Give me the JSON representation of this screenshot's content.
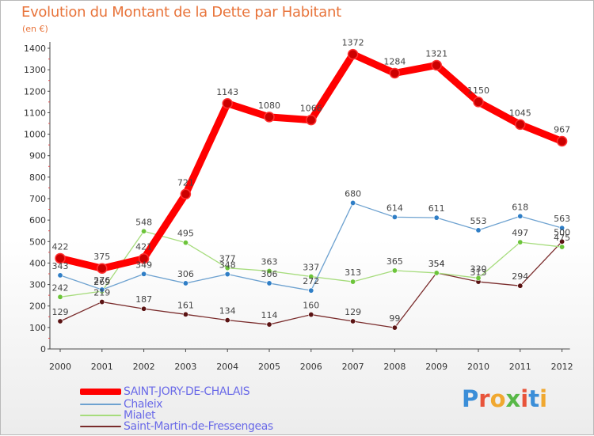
{
  "title": "Evolution du Montant de la Dette par Habitant",
  "unit_label": "(en €)",
  "brand": {
    "text": "Proxiti",
    "colors": [
      "#3b8ed8",
      "#e8543b",
      "#f0a830",
      "#58b847",
      "#e8543b",
      "#3b8ed8",
      "#f0a830"
    ]
  },
  "chart_data": {
    "type": "line",
    "title": "Evolution du Montant de la Dette par Habitant",
    "xlabel": "",
    "ylabel": "(en €)",
    "x": [
      "2000",
      "2001",
      "2002",
      "2003",
      "2004",
      "2005",
      "2006",
      "2007",
      "2008",
      "2009",
      "2010",
      "2011",
      "2012"
    ],
    "ylim": [
      0,
      1400
    ],
    "yticks": [
      0,
      100,
      200,
      300,
      400,
      500,
      600,
      700,
      800,
      900,
      1000,
      1100,
      1200,
      1300,
      1400
    ],
    "grid": false,
    "legend_position": "bottom-left",
    "series": [
      {
        "name": "SAINT-JORY-DE-CHALAIS",
        "color": "#ff0000",
        "marker_color": "#cc0000",
        "bold": true,
        "values": [
          422,
          375,
          421,
          721,
          1143,
          1080,
          1066,
          1372,
          1284,
          1321,
          1150,
          1045,
          967
        ],
        "labels": [
          "422",
          "375",
          "421",
          "721",
          "1143",
          "1080",
          "1066",
          "1372",
          "1284",
          "1321",
          "1150",
          "1045",
          "967"
        ]
      },
      {
        "name": "Chaleix",
        "color": "#6ea2d0",
        "marker_color": "#2f7ec6",
        "bold": false,
        "values": [
          343,
          276,
          349,
          306,
          348,
          306,
          272,
          680,
          614,
          611,
          553,
          618,
          563
        ],
        "labels": [
          "343",
          "276",
          "349",
          "306",
          "348",
          "306",
          "272",
          "680",
          "614",
          "611",
          "553",
          "618",
          "563"
        ]
      },
      {
        "name": "Mialet",
        "color": "#a6dc7c",
        "marker_color": "#6cc43a",
        "bold": false,
        "values": [
          242,
          269,
          548,
          495,
          377,
          363,
          337,
          313,
          365,
          354,
          330,
          497,
          475
        ],
        "labels": [
          "242",
          "269",
          "548",
          "495",
          "377",
          "363",
          "337",
          "313",
          "365",
          "354",
          "330",
          "497",
          "475"
        ]
      },
      {
        "name": "Saint-Martin-de-Fressengeas",
        "color": "#7a2c2c",
        "marker_color": "#5a1212",
        "bold": false,
        "values": [
          129,
          219,
          187,
          161,
          134,
          114,
          160,
          129,
          99,
          354,
          313,
          294,
          500
        ],
        "labels": [
          "129",
          "219",
          "187",
          "161",
          "134",
          "114",
          "160",
          "129",
          "99",
          "354",
          "313",
          "294",
          "500"
        ]
      }
    ]
  }
}
